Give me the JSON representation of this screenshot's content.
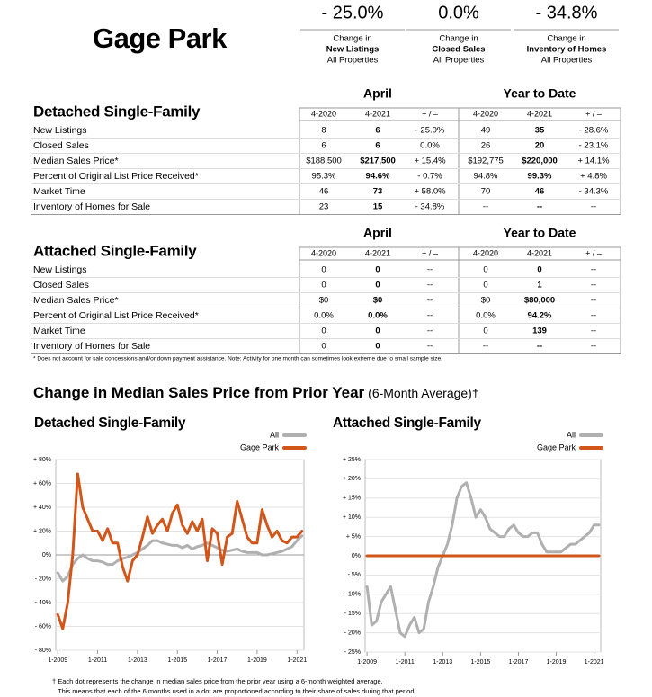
{
  "header": {
    "title": "Gage Park",
    "stats": [
      {
        "value": "- 25.0%",
        "line1": "Change in",
        "line2": "New Listings",
        "line3": "All Properties"
      },
      {
        "value": "0.0%",
        "line1": "Change in",
        "line2": "Closed Sales",
        "line3": "All Properties"
      },
      {
        "value": "- 34.8%",
        "line1": "Change in",
        "line2": "Inventory of Homes",
        "line3": "All Properties"
      }
    ]
  },
  "tables": [
    {
      "title": "Detached Single-Family",
      "groups": [
        "April",
        "Year to Date"
      ],
      "columns": [
        "4-2020",
        "4-2021",
        "+ / –",
        "4-2020",
        "4-2021",
        "+ / –"
      ],
      "rows": [
        {
          "label": "New Listings",
          "cells": [
            "8",
            "6",
            "- 25.0%",
            "49",
            "35",
            "- 28.6%"
          ]
        },
        {
          "label": "Closed Sales",
          "cells": [
            "6",
            "6",
            "0.0%",
            "26",
            "20",
            "- 23.1%"
          ]
        },
        {
          "label": "Median Sales Price*",
          "cells": [
            "$188,500",
            "$217,500",
            "+ 15.4%",
            "$192,775",
            "$220,000",
            "+ 14.1%"
          ]
        },
        {
          "label": "Percent of Original List Price Received*",
          "cells": [
            "95.3%",
            "94.6%",
            "- 0.7%",
            "94.8%",
            "99.3%",
            "+ 4.8%"
          ]
        },
        {
          "label": "Market Time",
          "cells": [
            "46",
            "73",
            "+ 58.0%",
            "70",
            "46",
            "- 34.3%"
          ]
        },
        {
          "label": "Inventory of Homes for Sale",
          "cells": [
            "23",
            "15",
            "- 34.8%",
            "--",
            "--",
            "--"
          ]
        }
      ]
    },
    {
      "title": "Attached Single-Family",
      "groups": [
        "April",
        "Year to Date"
      ],
      "columns": [
        "4-2020",
        "4-2021",
        "+ / –",
        "4-2020",
        "4-2021",
        "+ / –"
      ],
      "rows": [
        {
          "label": "New Listings",
          "cells": [
            "0",
            "0",
            "--",
            "0",
            "0",
            "--"
          ]
        },
        {
          "label": "Closed Sales",
          "cells": [
            "0",
            "0",
            "--",
            "0",
            "1",
            "--"
          ]
        },
        {
          "label": "Median Sales Price*",
          "cells": [
            "$0",
            "$0",
            "--",
            "$0",
            "$80,000",
            "--"
          ]
        },
        {
          "label": "Percent of Original List Price Received*",
          "cells": [
            "0.0%",
            "0.0%",
            "--",
            "0.0%",
            "94.2%",
            "--"
          ]
        },
        {
          "label": "Market Time",
          "cells": [
            "0",
            "0",
            "--",
            "0",
            "139",
            "--"
          ]
        },
        {
          "label": "Inventory of Homes for Sale",
          "cells": [
            "0",
            "0",
            "--",
            "--",
            "--",
            "--"
          ]
        }
      ]
    }
  ],
  "table_note": "* Does not account for sale concessions and/or down payment assistance. Note: Activity for one month can sometimes look extreme due to small sample size.",
  "section": {
    "title": "Change in Median Sales Price from Prior Year",
    "subtitle": "(6-Month Average)†"
  },
  "footnote": [
    "† Each dot represents the change in median sales price from the prior year using a 6-month weighted average.",
    "This means that each of the 6 months used in a dot are proportioned according to their share of sales during that period."
  ],
  "chart_data": [
    {
      "type": "line",
      "title": "Detached Single-Family",
      "grid": true,
      "legend": "top-right",
      "x": [
        2009,
        2009.25,
        2009.5,
        2009.75,
        2010,
        2010.25,
        2010.5,
        2010.75,
        2011,
        2011.25,
        2011.5,
        2011.75,
        2012,
        2012.25,
        2012.5,
        2012.75,
        2013,
        2013.25,
        2013.5,
        2013.75,
        2014,
        2014.25,
        2014.5,
        2014.75,
        2015,
        2015.25,
        2015.5,
        2015.75,
        2016,
        2016.25,
        2016.5,
        2016.75,
        2017,
        2017.25,
        2017.5,
        2017.75,
        2018,
        2018.25,
        2018.5,
        2018.75,
        2019,
        2019.25,
        2019.5,
        2019.75,
        2020,
        2020.25,
        2020.5,
        2020.75,
        2021,
        2021.25
      ],
      "xlim": [
        2008.9,
        2021.35
      ],
      "xticks": [
        {
          "value": 2009,
          "label": "1-2009"
        },
        {
          "value": 2011,
          "label": "1-2011"
        },
        {
          "value": 2013,
          "label": "1-2013"
        },
        {
          "value": 2015,
          "label": "1-2015"
        },
        {
          "value": 2017,
          "label": "1-2017"
        },
        {
          "value": 2019,
          "label": "1-2019"
        },
        {
          "value": 2021,
          "label": "1-2021"
        }
      ],
      "ylim": [
        -80,
        80
      ],
      "yticks": [
        {
          "value": -80,
          "label": "- 80%"
        },
        {
          "value": -60,
          "label": "- 60%"
        },
        {
          "value": -40,
          "label": "- 40%"
        },
        {
          "value": -20,
          "label": "- 20%"
        },
        {
          "value": 0,
          "label": "0%"
        },
        {
          "value": 20,
          "label": "+ 20%"
        },
        {
          "value": 40,
          "label": "+ 40%"
        },
        {
          "value": 60,
          "label": "+ 60%"
        },
        {
          "value": 80,
          "label": "+ 80%"
        }
      ],
      "series": [
        {
          "name": "All",
          "color": "#b0b0b0",
          "values": [
            -15,
            -22,
            -18,
            -8,
            -3,
            0,
            -3,
            -5,
            -5,
            -6,
            -8,
            -8,
            -5,
            -3,
            -2,
            0,
            2,
            5,
            8,
            12,
            12,
            10,
            9,
            8,
            8,
            6,
            8,
            5,
            7,
            8,
            10,
            8,
            6,
            4,
            3,
            4,
            5,
            3,
            2,
            2,
            2,
            0,
            0,
            1,
            2,
            3,
            5,
            7,
            12,
            16
          ]
        },
        {
          "name": "Gage Park",
          "color": "#d2561a",
          "values": [
            -50,
            -62,
            -40,
            0,
            68,
            40,
            30,
            20,
            20,
            12,
            22,
            10,
            10,
            -10,
            -22,
            -5,
            0,
            15,
            32,
            18,
            25,
            30,
            20,
            35,
            42,
            25,
            18,
            28,
            20,
            30,
            -5,
            22,
            18,
            -8,
            15,
            18,
            45,
            30,
            15,
            10,
            10,
            38,
            25,
            15,
            20,
            12,
            10,
            15,
            15,
            20
          ]
        }
      ]
    },
    {
      "type": "line",
      "title": "Attached Single-Family",
      "grid": true,
      "legend": "top-right",
      "x": [
        2009,
        2009.25,
        2009.5,
        2009.75,
        2010,
        2010.25,
        2010.5,
        2010.75,
        2011,
        2011.25,
        2011.5,
        2011.75,
        2012,
        2012.25,
        2012.5,
        2012.75,
        2013,
        2013.25,
        2013.5,
        2013.75,
        2014,
        2014.25,
        2014.5,
        2014.75,
        2015,
        2015.25,
        2015.5,
        2015.75,
        2016,
        2016.25,
        2016.5,
        2016.75,
        2017,
        2017.25,
        2017.5,
        2017.75,
        2018,
        2018.25,
        2018.5,
        2018.75,
        2019,
        2019.25,
        2019.5,
        2019.75,
        2020,
        2020.25,
        2020.5,
        2020.75,
        2021,
        2021.25
      ],
      "xlim": [
        2008.9,
        2021.35
      ],
      "xticks": [
        {
          "value": 2009,
          "label": "1-2009"
        },
        {
          "value": 2011,
          "label": "1-2011"
        },
        {
          "value": 2013,
          "label": "1-2013"
        },
        {
          "value": 2015,
          "label": "1-2015"
        },
        {
          "value": 2017,
          "label": "1-2017"
        },
        {
          "value": 2019,
          "label": "1-2019"
        },
        {
          "value": 2021,
          "label": "1-2021"
        }
      ],
      "ylim": [
        -25,
        25
      ],
      "yticks": [
        {
          "value": -25,
          "label": "- 25%"
        },
        {
          "value": -20,
          "label": "- 20%"
        },
        {
          "value": -15,
          "label": "- 15%"
        },
        {
          "value": -10,
          "label": "- 10%"
        },
        {
          "value": -5,
          "label": "- 5%"
        },
        {
          "value": 0,
          "label": "0%"
        },
        {
          "value": 5,
          "label": "+ 5%"
        },
        {
          "value": 10,
          "label": "+ 10%"
        },
        {
          "value": 15,
          "label": "+ 15%"
        },
        {
          "value": 20,
          "label": "+ 20%"
        },
        {
          "value": 25,
          "label": "+ 25%"
        }
      ],
      "series": [
        {
          "name": "All",
          "color": "#b0b0b0",
          "values": [
            -8,
            -18,
            -17,
            -12,
            -10,
            -8,
            -14,
            -20,
            -21,
            -18,
            -16,
            -20,
            -19,
            -12,
            -8,
            -3,
            0,
            3,
            8,
            15,
            18,
            19,
            15,
            10,
            12,
            10,
            7,
            6,
            5,
            5,
            7,
            8,
            6,
            5,
            5,
            6,
            6,
            3,
            1,
            1,
            1,
            1,
            2,
            3,
            3,
            4,
            5,
            6,
            8,
            8
          ]
        },
        {
          "name": "Gage Park",
          "color": "#d2561a",
          "values": [
            0,
            0,
            0,
            0,
            0,
            0,
            0,
            0,
            0,
            0,
            0,
            0,
            0,
            0,
            0,
            0,
            0,
            0,
            0,
            0,
            0,
            0,
            0,
            0,
            0,
            0,
            0,
            0,
            0,
            0,
            0,
            0,
            0,
            0,
            0,
            0,
            0,
            0,
            0,
            0,
            0,
            0,
            0,
            0,
            0,
            0,
            0,
            0,
            0,
            0
          ]
        }
      ]
    }
  ]
}
